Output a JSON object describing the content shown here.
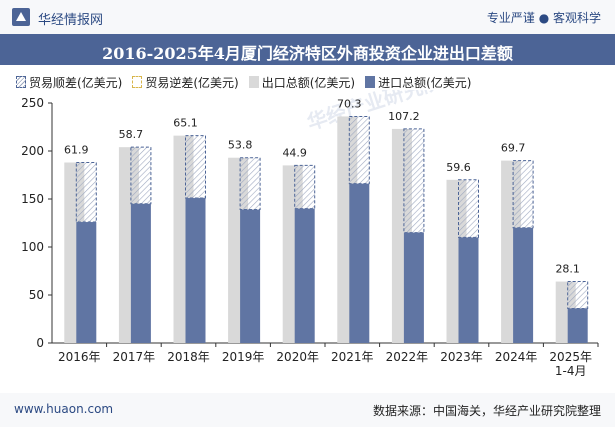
{
  "header": {
    "brand": "华经情报网",
    "slogan": "专业严谨 ● 客观科学"
  },
  "title": "2016-2025年4月厦门经济特区外商投资企业进出口差额",
  "legend": [
    {
      "key": "surplus",
      "label": "贸易顺差(亿美元)"
    },
    {
      "key": "deficit",
      "label": "贸易逆差(亿美元)"
    },
    {
      "key": "total",
      "label": "出口总额(亿美元)"
    },
    {
      "key": "import",
      "label": "进口总额(亿美元)"
    }
  ],
  "footer": {
    "url": "www.huaon.com",
    "source": "数据来源：中国海关，华经产业研究院整理"
  },
  "watermark": "华经产业研究院",
  "chart_data": {
    "type": "bar",
    "categories": [
      "2016年",
      "2017年",
      "2018年",
      "2019年",
      "2020年",
      "2021年",
      "2022年",
      "2023年",
      "2024年",
      "2025年\n1-4月"
    ],
    "series": [
      {
        "name": "出口总额(亿美元)",
        "values": [
          188,
          204,
          216,
          193,
          185,
          236,
          223,
          170,
          190,
          64
        ]
      },
      {
        "name": "进口总额(亿美元)",
        "values": [
          126,
          145,
          151,
          139,
          140,
          166,
          115,
          110,
          120,
          36
        ]
      },
      {
        "name": "贸易顺差(亿美元)",
        "values": [
          61.9,
          58.7,
          65.1,
          53.8,
          44.9,
          70.3,
          107.2,
          59.6,
          69.7,
          28.1
        ]
      }
    ],
    "ylim": [
      0,
      250
    ],
    "yticks": [
      0,
      50,
      100,
      150,
      200,
      250
    ],
    "colors": {
      "total": "#d9d9d9",
      "import": "#6075a3",
      "surplus_border": "#4c6496",
      "hatch": "#9fa9c0",
      "axis": "#333333"
    }
  }
}
